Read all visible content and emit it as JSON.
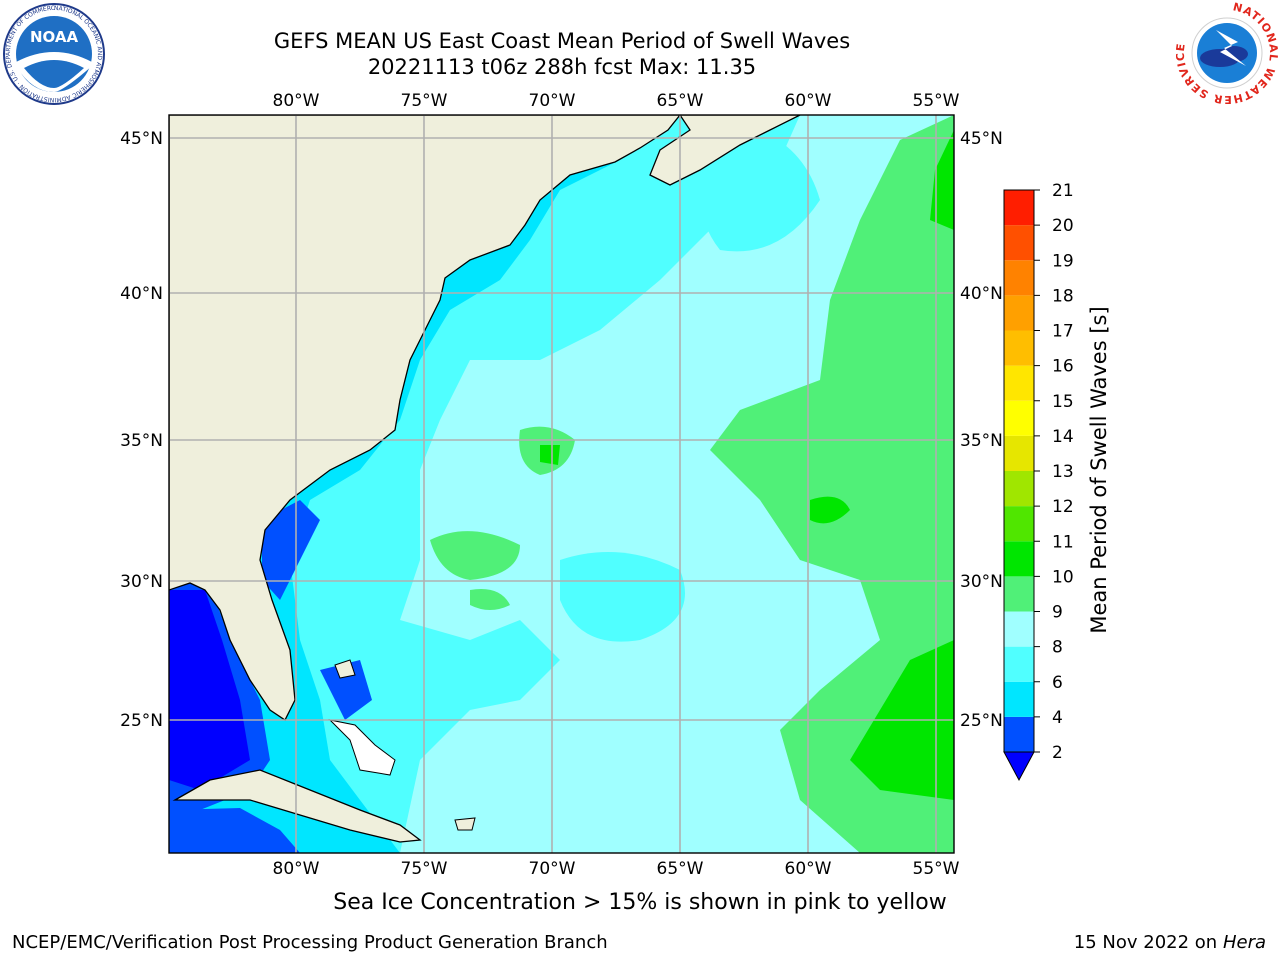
{
  "header": {
    "title_line1": "GEFS MEAN US East Coast Mean Period of Swell Waves",
    "title_line2": "20221113 t06z 288h fcst   Max: 11.35"
  },
  "logos": {
    "left_text": "NOAA",
    "left_ring": "NATIONAL OCEANIC AND ATMOSPHERIC ADMINISTRATION · U.S. DEPARTMENT OF COMMERCE",
    "right_ring": "NATIONAL WEATHER SERVICE"
  },
  "map": {
    "lon_labels": [
      "80°W",
      "75°W",
      "70°W",
      "65°W",
      "60°W",
      "55°W"
    ],
    "lat_labels": [
      "45°N",
      "40°N",
      "35°N",
      "30°N",
      "25°N"
    ]
  },
  "colorbar": {
    "label": "Mean Period of Swell Waves [s]",
    "ticks": [
      "2",
      "4",
      "6",
      "8",
      "9",
      "10",
      "11",
      "12",
      "13",
      "14",
      "15",
      "16",
      "17",
      "18",
      "19",
      "20",
      "21"
    ],
    "colors": [
      "#0050ff",
      "#00e6ff",
      "#50ffff",
      "#a0ffff",
      "#50f078",
      "#00e600",
      "#50e600",
      "#a0e600",
      "#e6e600",
      "#ffff00",
      "#ffe600",
      "#ffbe00",
      "#ffa000",
      "#ff8200",
      "#ff5000",
      "#ff1e00"
    ],
    "extend_color": "#0000ff"
  },
  "footer": {
    "note": "Sea Ice Concentration > 15% is shown in pink to yellow",
    "left": "NCEP/EMC/Verification Post Processing Product Generation Branch",
    "right_date": "15 Nov 2022 on",
    "right_host": "Hera"
  }
}
